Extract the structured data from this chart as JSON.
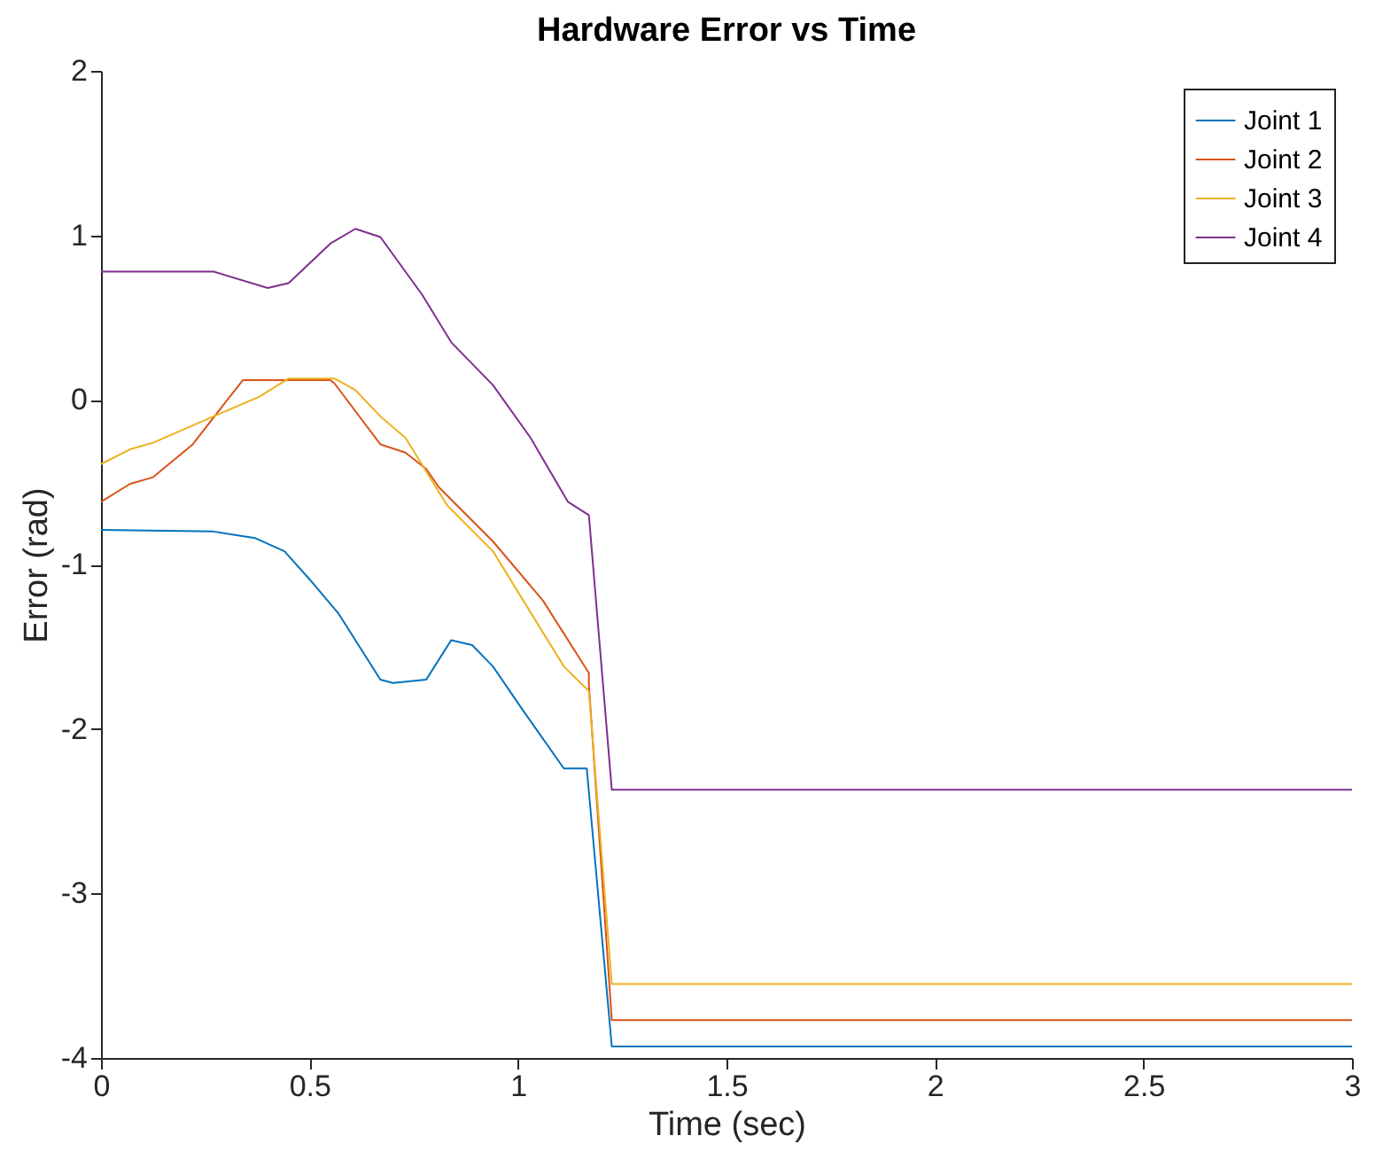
{
  "chart_data": {
    "type": "line",
    "title": "Hardware Error vs Time",
    "xlabel": "Time (sec)",
    "ylabel": "Error (rad)",
    "xlim": [
      0,
      3
    ],
    "xticks": [
      0,
      0.5,
      1,
      1.5,
      2,
      2.5,
      3
    ],
    "ylim": [
      -4,
      2
    ],
    "yticks": [
      -4,
      -3,
      -2,
      -1,
      0,
      1,
      2
    ],
    "grid": false,
    "legend": "top right",
    "line_style": "solid",
    "marker": "none",
    "series": [
      {
        "name": "Joint 1",
        "color": "#0072bd",
        "x": [
          0,
          0.27,
          0.37,
          0.44,
          0.5,
          0.57,
          0.67,
          0.7,
          0.78,
          0.84,
          0.89,
          0.94,
          1.01,
          1.11,
          1.165,
          1.225,
          3
        ],
        "values": [
          -0.79,
          -0.8,
          -0.84,
          -0.92,
          -1.09,
          -1.3,
          -1.7,
          -1.72,
          -1.7,
          -1.46,
          -1.49,
          -1.62,
          -1.88,
          -2.24,
          -2.24,
          -3.93,
          -3.93
        ]
      },
      {
        "name": "Joint 2",
        "color": "#d95319",
        "x": [
          0,
          0.07,
          0.125,
          0.22,
          0.34,
          0.55,
          0.56,
          0.67,
          0.73,
          0.78,
          0.81,
          0.94,
          1.06,
          1.17,
          1.17,
          1.225,
          3
        ],
        "values": [
          -0.62,
          -0.51,
          -0.47,
          -0.27,
          0.12,
          0.12,
          0.1,
          -0.27,
          -0.32,
          -0.42,
          -0.53,
          -0.86,
          -1.22,
          -1.66,
          -1.73,
          -3.77,
          -3.77
        ]
      },
      {
        "name": "Joint 3",
        "color": "#edb120",
        "x": [
          0,
          0.07,
          0.125,
          0.27,
          0.38,
          0.45,
          0.56,
          0.61,
          0.67,
          0.73,
          0.83,
          0.94,
          1.11,
          1.17,
          1.225,
          3
        ],
        "values": [
          -0.39,
          -0.3,
          -0.26,
          -0.1,
          0.02,
          0.13,
          0.13,
          0.06,
          -0.1,
          -0.23,
          -0.64,
          -0.92,
          -1.62,
          -1.77,
          -3.55,
          -3.55
        ]
      },
      {
        "name": "Joint 4",
        "color": "#7e2f8e",
        "x": [
          0,
          0.22,
          0.27,
          0.4,
          0.45,
          0.55,
          0.61,
          0.67,
          0.77,
          0.84,
          0.94,
          1.03,
          1.12,
          1.17,
          1.225,
          3
        ],
        "values": [
          0.78,
          0.78,
          0.78,
          0.68,
          0.71,
          0.95,
          1.04,
          0.99,
          0.64,
          0.35,
          0.09,
          -0.23,
          -0.62,
          -0.7,
          -2.37,
          -2.37
        ]
      }
    ]
  }
}
